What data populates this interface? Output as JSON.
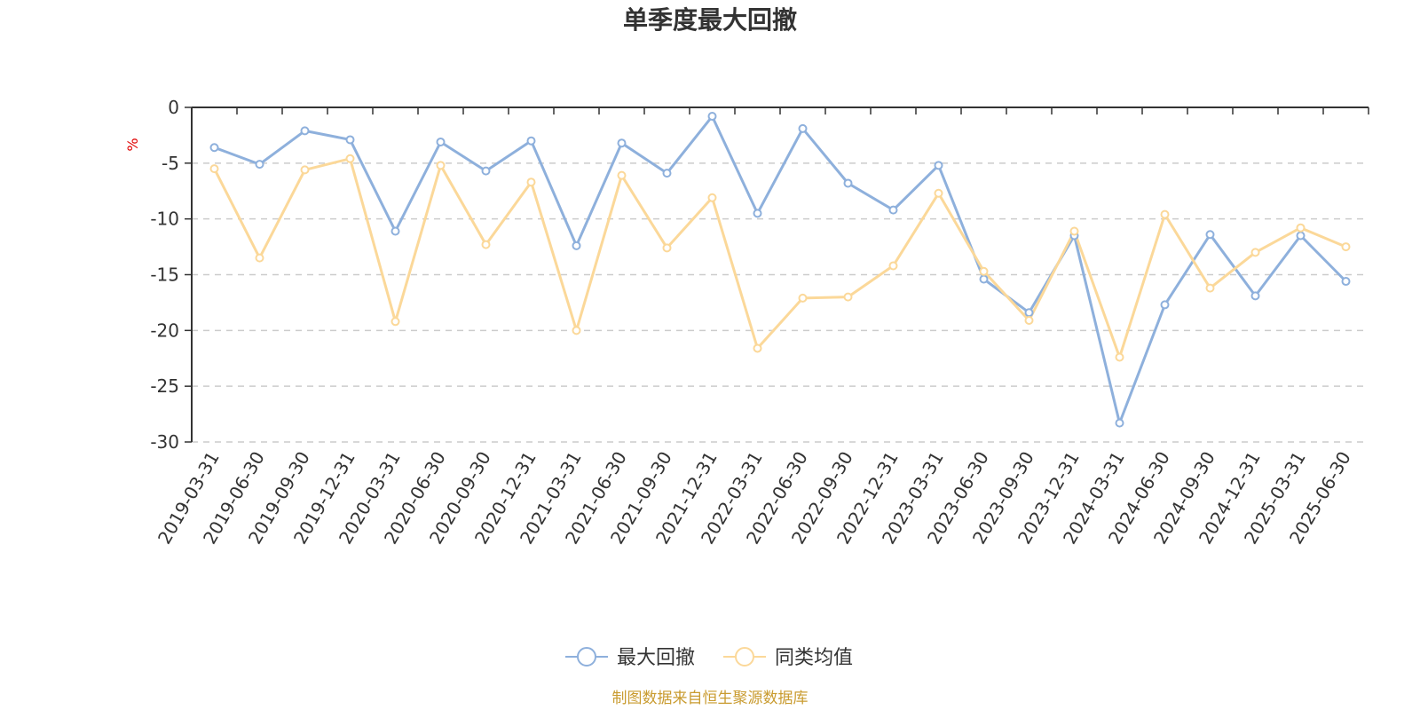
{
  "chart_data": {
    "type": "line",
    "title": "单季度最大回撤",
    "ylabel": "%",
    "ylim": [
      -30,
      0
    ],
    "yticks": [
      0,
      -5,
      -10,
      -15,
      -20,
      -25,
      -30
    ],
    "grid": true,
    "legend_position": "bottom",
    "categories": [
      "2019-03-31",
      "2019-06-30",
      "2019-09-30",
      "2019-12-31",
      "2020-03-31",
      "2020-06-30",
      "2020-09-30",
      "2020-12-31",
      "2021-03-31",
      "2021-06-30",
      "2021-09-30",
      "2021-12-31",
      "2022-03-31",
      "2022-06-30",
      "2022-09-30",
      "2022-12-31",
      "2023-03-31",
      "2023-06-30",
      "2023-09-30",
      "2023-12-31",
      "2024-03-31",
      "2024-06-30",
      "2024-09-30",
      "2024-12-31",
      "2025-03-31",
      "2025-06-30"
    ],
    "series": [
      {
        "name": "最大回撤",
        "color": "#8eb0dc",
        "values": [
          -3.6,
          -5.1,
          -2.1,
          -2.9,
          -11.1,
          -3.1,
          -5.7,
          -3.0,
          -12.4,
          -3.2,
          -5.9,
          -0.8,
          -9.5,
          -1.9,
          -6.8,
          -9.2,
          -5.2,
          -15.4,
          -18.4,
          -11.5,
          -28.3,
          -17.7,
          -11.4,
          -16.9,
          -11.5,
          -15.6
        ]
      },
      {
        "name": "同类均值",
        "color": "#fbd899",
        "values": [
          -5.5,
          -13.5,
          -5.6,
          -4.6,
          -19.2,
          -5.2,
          -12.3,
          -6.7,
          -20.0,
          -6.1,
          -12.6,
          -8.1,
          -21.6,
          -17.1,
          -17.0,
          -14.2,
          -7.7,
          -14.7,
          -19.1,
          -11.1,
          -22.4,
          -9.6,
          -16.2,
          -13.0,
          -10.8,
          -12.5
        ]
      }
    ],
    "source": "制图数据来自恒生聚源数据库",
    "source_color": "#c99b2f",
    "unit_color": "#e00000"
  }
}
